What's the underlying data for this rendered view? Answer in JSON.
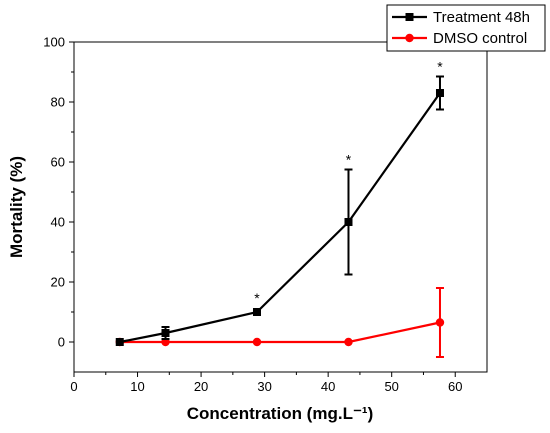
{
  "chart_data": {
    "type": "line",
    "xlabel": "Concentration (mg.L⁻¹)",
    "ylabel": "Mortality (%)",
    "xlim": [
      0,
      65
    ],
    "ylim": [
      -10,
      100
    ],
    "x_ticks": [
      0,
      10,
      20,
      30,
      40,
      50,
      60
    ],
    "y_ticks": [
      0,
      20,
      40,
      60,
      80,
      100
    ],
    "legend_position": "top-right",
    "grid": false,
    "series": [
      {
        "name": "Treatment 48h",
        "color": "#000000",
        "marker": "square",
        "x": [
          7.2,
          14.4,
          28.8,
          43.2,
          57.6
        ],
        "y": [
          0,
          3,
          10,
          40,
          83
        ],
        "err": [
          0,
          2,
          0,
          17.5,
          5.5
        ],
        "annotations": [
          "",
          "",
          "*",
          "*",
          "*"
        ]
      },
      {
        "name": "DMSO control",
        "color": "#ff0000",
        "marker": "circle",
        "x": [
          7.2,
          14.4,
          28.8,
          43.2,
          57.6
        ],
        "y": [
          0,
          0,
          0,
          0,
          6.5
        ],
        "err": [
          0,
          0,
          0,
          0,
          11.5
        ],
        "annotations": [
          "",
          "",
          "",
          "",
          ""
        ]
      }
    ]
  }
}
